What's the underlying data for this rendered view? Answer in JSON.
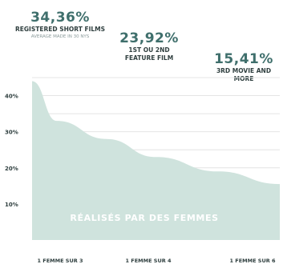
{
  "stats": [
    {
      "pct": "34,36%",
      "label": "REGISTERED SHORT FILMS",
      "sub": "AVERAGE MADE IN 30 NYS"
    },
    {
      "pct": "23,92%",
      "label": "1ST OU 2ND",
      "label2": "FEATURE FILM",
      "sub": ""
    },
    {
      "pct": "15,41%",
      "label": "3RD MOVIE AND",
      "label2": "MORE",
      "sub": ""
    }
  ],
  "chart_data": {
    "type": "area",
    "title": "",
    "xlabel": "",
    "ylabel": "",
    "x_tick_labels": [
      "1 FEMME SUR 3",
      "1 FEMME SUR 4",
      "1 FEMME SUR 6"
    ],
    "y_ticks": [
      "40%",
      "30%",
      "20%",
      "10%"
    ],
    "ylim": [
      0,
      45
    ],
    "xlim": [
      0,
      1
    ],
    "x": [
      0,
      0.1,
      0.3,
      0.5,
      0.75,
      1
    ],
    "values": [
      44,
      33,
      28,
      23,
      19,
      15.5
    ],
    "annotation": "RÉALISÉS PAR DES FEMMES",
    "grid": true,
    "fill_color": "#cfe3dd",
    "grid_color": "#e4e4e4"
  }
}
